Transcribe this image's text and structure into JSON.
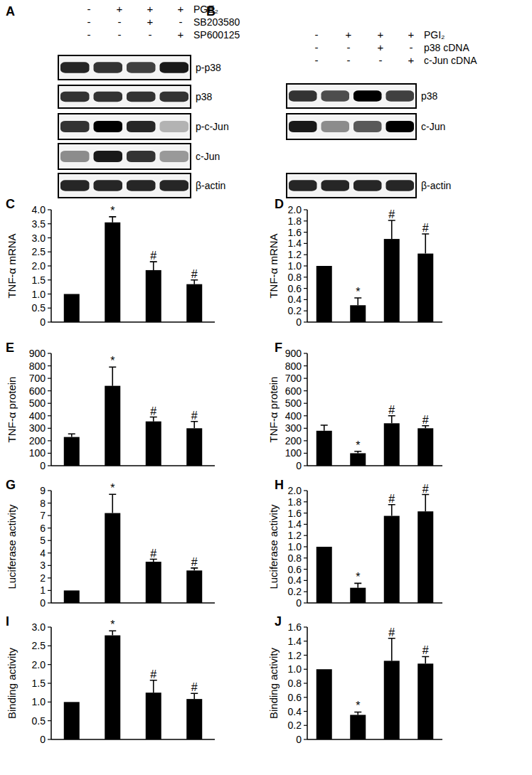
{
  "chart_data": [
    {
      "type": "bar",
      "title": "C",
      "y_label": "TNF-α mRNA",
      "categories": [
        null,
        null,
        null,
        null
      ],
      "values": [
        1.0,
        3.55,
        1.85,
        1.35
      ],
      "errors": [
        null,
        0.2,
        0.3,
        0.15
      ],
      "annotations": [
        null,
        "*",
        "#",
        "#"
      ],
      "color": "#000000",
      "ylim": [
        0,
        4
      ],
      "yticks": [
        0,
        0.5,
        {
          "value": 1,
          "label": "1.0"
        },
        1.5,
        {
          "value": 2,
          "label": "2.0"
        },
        2.5,
        {
          "value": 3,
          "label": "3.0"
        },
        3.5,
        {
          "value": 4,
          "label": "4.0"
        }
      ]
    },
    {
      "type": "bar",
      "title": "D",
      "y_label": "TNF-α mRNA",
      "categories": [
        null,
        null,
        null,
        null
      ],
      "values": [
        1.0,
        0.3,
        1.48,
        1.22
      ],
      "errors": [
        null,
        0.13,
        0.33,
        0.35
      ],
      "annotations": [
        null,
        "*",
        "#",
        "#"
      ],
      "color": "#000000",
      "ylim": [
        0,
        2
      ],
      "yticks": [
        0,
        0.2,
        0.4,
        0.6,
        0.8,
        {
          "value": 1,
          "label": "1.0"
        },
        1.2,
        1.4,
        1.6,
        1.8,
        {
          "value": 2,
          "label": "2.0"
        }
      ]
    },
    {
      "type": "bar",
      "title": "E",
      "y_label": "TNF-α protein",
      "categories": [
        null,
        null,
        null,
        null
      ],
      "values": [
        230,
        640,
        355,
        300
      ],
      "errors": [
        25,
        150,
        35,
        55
      ],
      "annotations": [
        null,
        "*",
        "#",
        "#"
      ],
      "color": "#000000",
      "ylim": [
        0,
        900
      ],
      "yticks": [
        0,
        100,
        200,
        300,
        400,
        500,
        600,
        700,
        800,
        900
      ]
    },
    {
      "type": "bar",
      "title": "F",
      "y_label": "TNF-α protein",
      "categories": [
        null,
        null,
        null,
        null
      ],
      "values": [
        280,
        100,
        340,
        300
      ],
      "errors": [
        45,
        15,
        60,
        20
      ],
      "annotations": [
        null,
        "*",
        "#",
        "#"
      ],
      "color": "#000000",
      "ylim": [
        0,
        900
      ],
      "yticks": [
        0,
        100,
        200,
        300,
        400,
        500,
        600,
        700,
        800,
        900
      ]
    },
    {
      "type": "bar",
      "title": "G",
      "y_label": "Luciferase activity",
      "categories": [
        null,
        null,
        null,
        null
      ],
      "values": [
        1.0,
        7.2,
        3.3,
        2.6
      ],
      "errors": [
        null,
        1.5,
        0.2,
        0.2
      ],
      "annotations": [
        null,
        "*",
        "#",
        "#"
      ],
      "color": "#000000",
      "ylim": [
        0,
        9
      ],
      "yticks": [
        0,
        1,
        2,
        3,
        4,
        5,
        6,
        7,
        8,
        9
      ]
    },
    {
      "type": "bar",
      "title": "H",
      "y_label": "Luciferase activity",
      "categories": [
        null,
        null,
        null,
        null
      ],
      "values": [
        1.0,
        0.27,
        1.55,
        1.63
      ],
      "errors": [
        null,
        0.08,
        0.2,
        0.3
      ],
      "annotations": [
        null,
        "*",
        "#",
        "#"
      ],
      "color": "#000000",
      "ylim": [
        0,
        2
      ],
      "yticks": [
        0,
        0.2,
        0.4,
        0.6,
        0.8,
        {
          "value": 1,
          "label": "1.0"
        },
        1.2,
        1.4,
        1.6,
        1.8,
        {
          "value": 2,
          "label": "2.0"
        }
      ]
    },
    {
      "type": "bar",
      "title": "I",
      "y_label": "Binding activity",
      "categories": [
        null,
        null,
        null,
        null
      ],
      "values": [
        1.0,
        2.78,
        1.25,
        1.08
      ],
      "errors": [
        null,
        0.12,
        0.33,
        0.15
      ],
      "annotations": [
        null,
        "*",
        "#",
        "#"
      ],
      "color": "#000000",
      "ylim": [
        0,
        3
      ],
      "yticks": [
        0,
        0.5,
        {
          "value": 1,
          "label": "1.0"
        },
        1.5,
        {
          "value": 2,
          "label": "2.0"
        },
        2.5,
        {
          "value": 3,
          "label": "3.0"
        }
      ]
    },
    {
      "type": "bar",
      "title": "J",
      "y_label": "Binding activity",
      "categories": [
        null,
        null,
        null,
        null
      ],
      "values": [
        1.0,
        0.35,
        1.12,
        1.08
      ],
      "errors": [
        null,
        0.04,
        0.32,
        0.1
      ],
      "annotations": [
        null,
        "*",
        "#",
        "#"
      ],
      "color": "#000000",
      "ylim": [
        0,
        1.6
      ],
      "yticks": [
        0,
        0.2,
        0.4,
        0.6,
        0.8,
        {
          "value": 1,
          "label": "1.0"
        },
        1.2,
        1.4,
        1.6
      ]
    }
  ],
  "blots": [
    {
      "title": "A",
      "treatments": [
        {
          "label": "PGE₂",
          "signs": [
            "-",
            "+",
            "+",
            "+"
          ]
        },
        {
          "label": "SB203580",
          "signs": [
            "-",
            "-",
            "+",
            "-"
          ]
        },
        {
          "label": "SP600125",
          "signs": [
            "-",
            "-",
            "-",
            "+"
          ]
        }
      ],
      "bands": [
        {
          "label": "p-p38",
          "intensity": [
            0.85,
            0.8,
            0.75,
            0.9
          ]
        },
        {
          "label": "p38",
          "intensity": [
            0.8,
            0.8,
            0.8,
            0.8
          ]
        },
        {
          "label": "p-c-Jun",
          "intensity": [
            0.8,
            1.0,
            0.85,
            0.3
          ]
        },
        {
          "label": "c-Jun",
          "intensity": [
            0.45,
            0.9,
            0.8,
            0.4
          ]
        },
        {
          "label": "β-actin",
          "intensity": [
            0.85,
            0.85,
            0.85,
            0.85
          ]
        }
      ]
    },
    {
      "title": "B",
      "treatments": [
        {
          "label": "PGI₂",
          "signs": [
            "-",
            "+",
            "+",
            "+"
          ]
        },
        {
          "label": "p38 cDNA",
          "signs": [
            "-",
            "-",
            "+",
            "-"
          ]
        },
        {
          "label": "c-Jun cDNA",
          "signs": [
            "-",
            "-",
            "-",
            "+"
          ]
        }
      ],
      "bands": [
        {
          "label": "p38",
          "intensity": [
            0.8,
            0.7,
            1.0,
            0.75
          ]
        },
        {
          "label": "c-Jun",
          "intensity": [
            0.9,
            0.45,
            0.65,
            1.0
          ]
        },
        {
          "label": "β-actin",
          "intensity": [
            0.85,
            0.85,
            0.85,
            0.85
          ]
        }
      ]
    }
  ]
}
